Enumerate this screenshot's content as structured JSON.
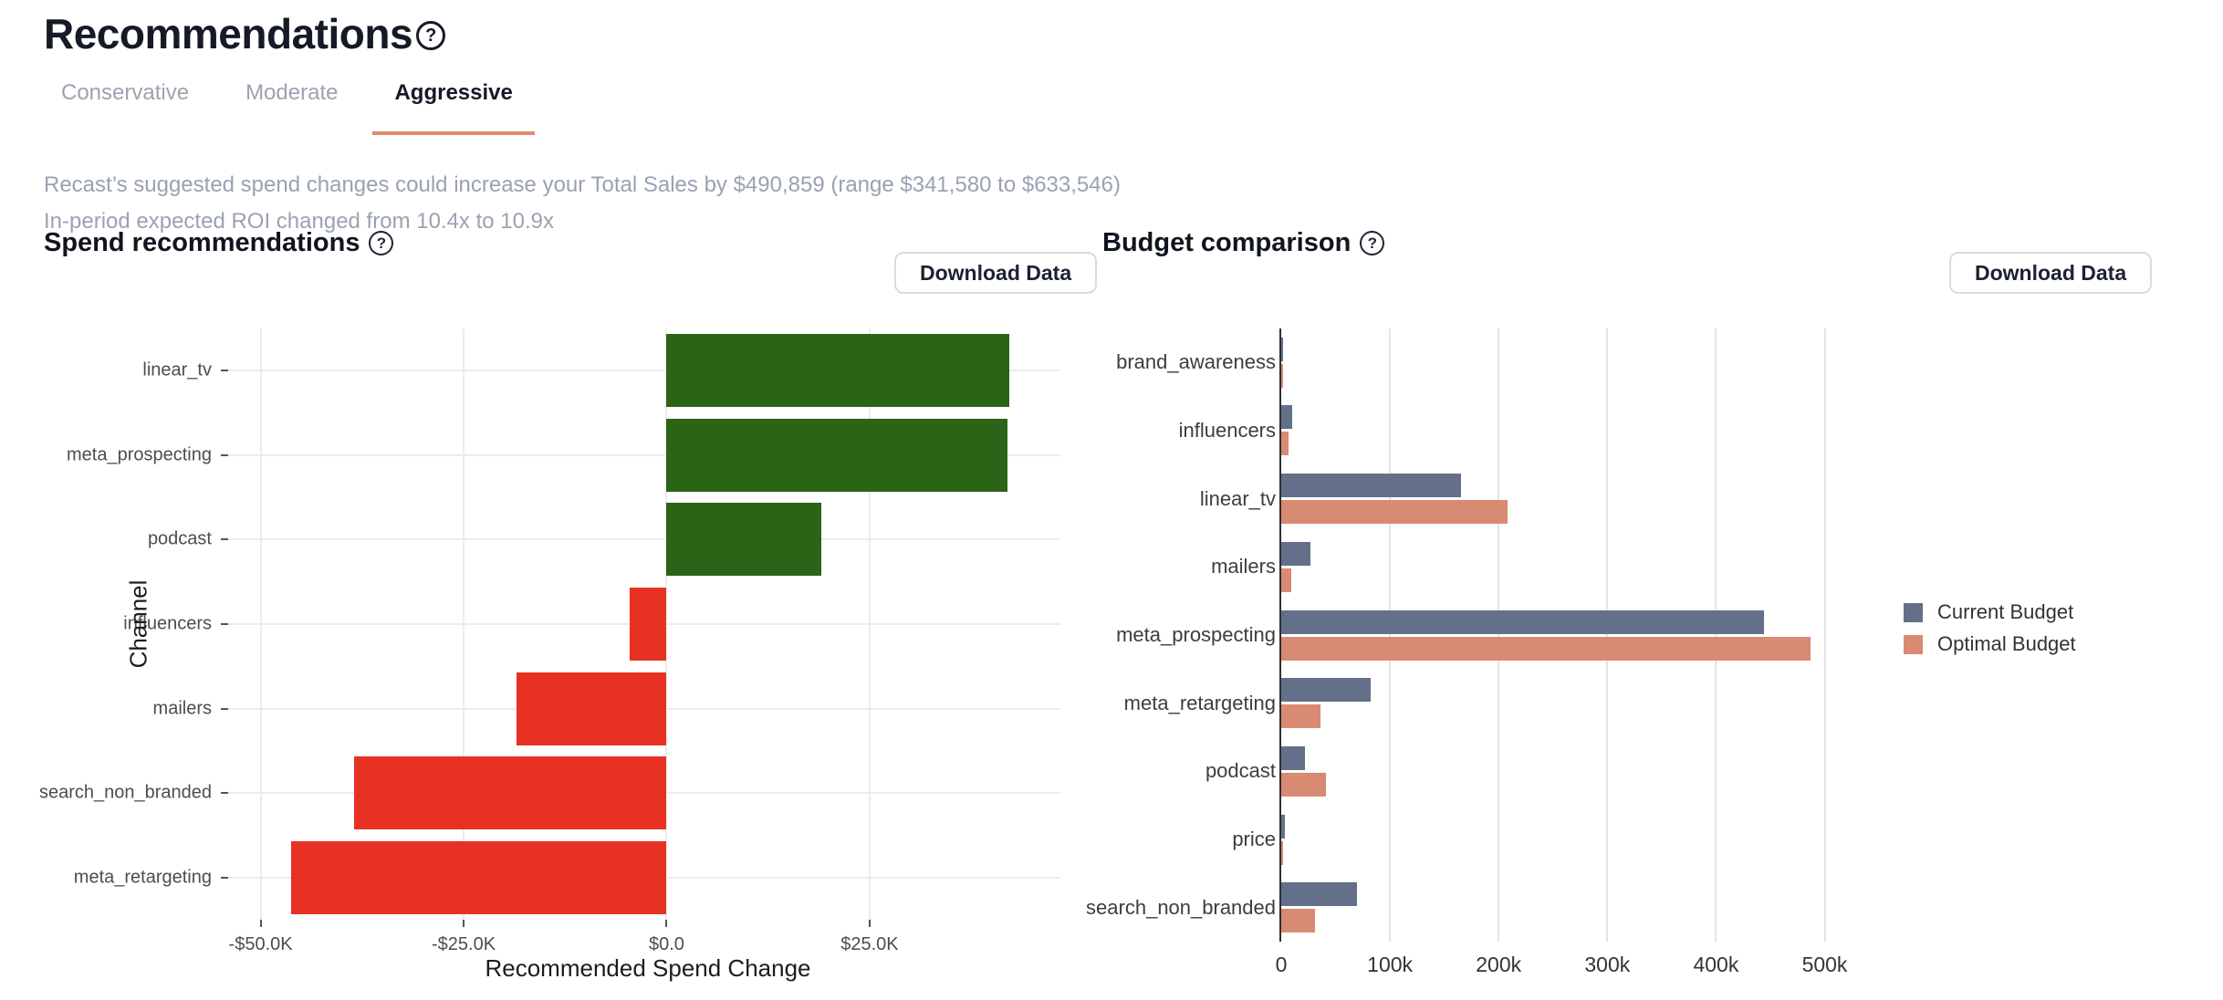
{
  "page": {
    "title": "Recommendations"
  },
  "tabs": [
    {
      "label": "Conservative",
      "active": false
    },
    {
      "label": "Moderate",
      "active": false
    },
    {
      "label": "Aggressive",
      "active": true
    }
  ],
  "summary": {
    "line1": "Recast’s suggested spend changes could increase your Total Sales by $490,859 (range $341,580 to $633,546)",
    "line2": "In-period expected ROI changed from 10.4x to 10.9x"
  },
  "spend_panel": {
    "title": "Spend recommendations",
    "help_icon": "?",
    "download_label": "Download Data"
  },
  "budget_panel": {
    "title": "Budget comparison",
    "help_icon": "?",
    "download_label": "Download Data"
  },
  "title_help_icon": "?",
  "colors": {
    "accent_underline": "#df8a6b",
    "positive_bar": "#2b6416",
    "negative_bar": "#e73223",
    "current_budget": "#647089",
    "optimal_budget": "#d98a73"
  },
  "chart_data": [
    {
      "type": "bar",
      "orientation": "horizontal",
      "title": "Spend recommendations",
      "categories": [
        "linear_tv",
        "meta_prospecting",
        "podcast",
        "influencers",
        "mailers",
        "search_non_branded",
        "meta_retargeting"
      ],
      "values": [
        42200,
        42000,
        19000,
        -4500,
        -18500,
        -38500,
        -46200
      ],
      "xlabel": "Recommended Spend Change",
      "ylabel": "Channel",
      "xticks": [
        {
          "value": -50000,
          "label": "-$50.0K"
        },
        {
          "value": -25000,
          "label": "-$25.0K"
        },
        {
          "value": 0,
          "label": "$0.0"
        },
        {
          "value": 25000,
          "label": "$25.0K"
        }
      ],
      "xlim": [
        -54000,
        48500
      ],
      "grid": true,
      "positive_color": "#2b6416",
      "negative_color": "#e73223"
    },
    {
      "type": "bar",
      "orientation": "horizontal",
      "grouped": true,
      "title": "Budget comparison",
      "categories": [
        "brand_awareness",
        "influencers",
        "linear_tv",
        "mailers",
        "meta_prospecting",
        "meta_retargeting",
        "podcast",
        "price",
        "search_non_branded"
      ],
      "series": [
        {
          "name": "Current Budget",
          "color": "#647089",
          "values": [
            2000,
            10000,
            165000,
            27000,
            444000,
            82000,
            22000,
            3000,
            70000
          ]
        },
        {
          "name": "Optimal Budget",
          "color": "#d98a73",
          "values": [
            1500,
            6500,
            208000,
            9000,
            487000,
            36000,
            41500,
            2000,
            31000
          ]
        }
      ],
      "xticks": [
        {
          "value": 0,
          "label": "0"
        },
        {
          "value": 100000,
          "label": "100k"
        },
        {
          "value": 200000,
          "label": "200k"
        },
        {
          "value": 300000,
          "label": "300k"
        },
        {
          "value": 400000,
          "label": "400k"
        },
        {
          "value": 500000,
          "label": "500k"
        }
      ],
      "xlim": [
        0,
        534000
      ],
      "grid": true,
      "legend_position": "right"
    }
  ]
}
